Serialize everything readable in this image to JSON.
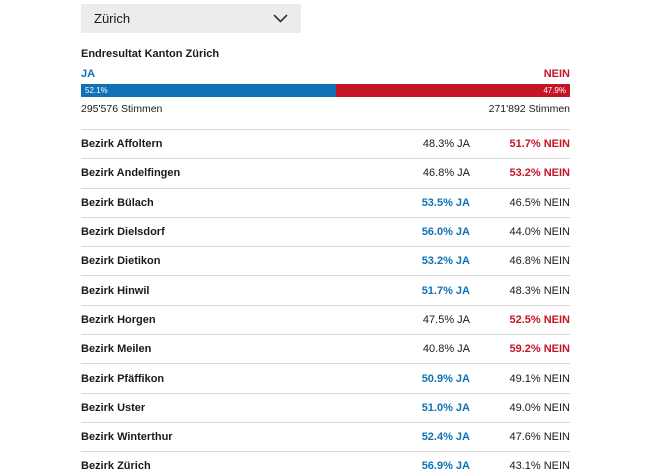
{
  "colors": {
    "ja": "#0e72b5",
    "nein": "#c41425",
    "dropdown_bg": "#ececec"
  },
  "selector": {
    "value": "Zürich"
  },
  "result": {
    "title": "Endresultat Kanton Zürich",
    "ja_label": "JA",
    "nein_label": "NEIN",
    "ja_pct": "52.1%",
    "nein_pct": "47.9%",
    "ja_votes": "295'576 Stimmen",
    "nein_votes": "271'892 Stimmen"
  },
  "districts": [
    {
      "name": "Bezirk Affoltern",
      "ja": "48.3% JA",
      "nein": "51.7% NEIN",
      "winner": "nein"
    },
    {
      "name": "Bezirk Andelfingen",
      "ja": "46.8% JA",
      "nein": "53.2% NEIN",
      "winner": "nein"
    },
    {
      "name": "Bezirk Bülach",
      "ja": "53.5% JA",
      "nein": "46.5% NEIN",
      "winner": "ja"
    },
    {
      "name": "Bezirk Dielsdorf",
      "ja": "56.0% JA",
      "nein": "44.0% NEIN",
      "winner": "ja"
    },
    {
      "name": "Bezirk Dietikon",
      "ja": "53.2% JA",
      "nein": "46.8% NEIN",
      "winner": "ja"
    },
    {
      "name": "Bezirk Hinwil",
      "ja": "51.7% JA",
      "nein": "48.3% NEIN",
      "winner": "ja"
    },
    {
      "name": "Bezirk Horgen",
      "ja": "47.5% JA",
      "nein": "52.5% NEIN",
      "winner": "nein"
    },
    {
      "name": "Bezirk Meilen",
      "ja": "40.8% JA",
      "nein": "59.2% NEIN",
      "winner": "nein"
    },
    {
      "name": "Bezirk Pfäffikon",
      "ja": "50.9% JA",
      "nein": "49.1% NEIN",
      "winner": "ja"
    },
    {
      "name": "Bezirk Uster",
      "ja": "51.0% JA",
      "nein": "49.0% NEIN",
      "winner": "ja"
    },
    {
      "name": "Bezirk Winterthur",
      "ja": "52.4% JA",
      "nein": "47.6% NEIN",
      "winner": "ja"
    },
    {
      "name": "Bezirk Zürich",
      "ja": "56.9% JA",
      "nein": "43.1% NEIN",
      "winner": "ja"
    }
  ],
  "chart_data": {
    "type": "bar",
    "title": "Endresultat Kanton Zürich",
    "categories": [
      "JA",
      "NEIN"
    ],
    "values": [
      52.1,
      47.9
    ],
    "votes": [
      295576,
      271892
    ],
    "unit": "%",
    "series": [
      {
        "name": "Bezirk Affoltern",
        "ja": 48.3,
        "nein": 51.7
      },
      {
        "name": "Bezirk Andelfingen",
        "ja": 46.8,
        "nein": 53.2
      },
      {
        "name": "Bezirk Bülach",
        "ja": 53.5,
        "nein": 46.5
      },
      {
        "name": "Bezirk Dielsdorf",
        "ja": 56.0,
        "nein": 44.0
      },
      {
        "name": "Bezirk Dietikon",
        "ja": 53.2,
        "nein": 46.8
      },
      {
        "name": "Bezirk Hinwil",
        "ja": 51.7,
        "nein": 48.3
      },
      {
        "name": "Bezirk Horgen",
        "ja": 47.5,
        "nein": 52.5
      },
      {
        "name": "Bezirk Meilen",
        "ja": 40.8,
        "nein": 59.2
      },
      {
        "name": "Bezirk Pfäffikon",
        "ja": 50.9,
        "nein": 49.1
      },
      {
        "name": "Bezirk Uster",
        "ja": 51.0,
        "nein": 49.0
      },
      {
        "name": "Bezirk Winterthur",
        "ja": 52.4,
        "nein": 47.6
      },
      {
        "name": "Bezirk Zürich",
        "ja": 56.9,
        "nein": 43.1
      }
    ]
  }
}
